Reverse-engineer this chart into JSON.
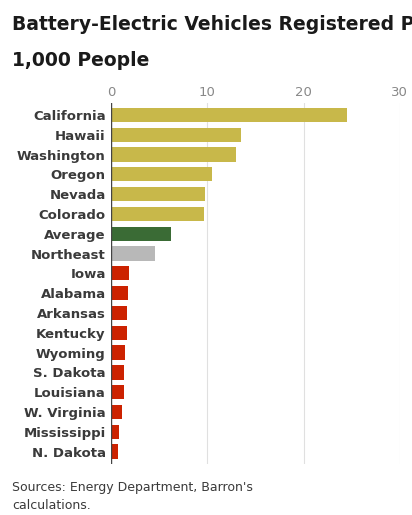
{
  "title_line1": "Battery-Electric Vehicles Registered Per",
  "title_line2": "1,000 People",
  "categories": [
    "California",
    "Hawaii",
    "Washington",
    "Oregon",
    "Nevada",
    "Colorado",
    "Average",
    "Northeast",
    "Iowa",
    "Alabama",
    "Arkansas",
    "Kentucky",
    "Wyoming",
    "S. Dakota",
    "Louisiana",
    "W. Virginia",
    "Mississippi",
    "N. Dakota"
  ],
  "values": [
    24.5,
    13.5,
    13.0,
    10.5,
    9.8,
    9.7,
    6.2,
    4.5,
    1.8,
    1.7,
    1.6,
    1.6,
    1.4,
    1.3,
    1.3,
    1.1,
    0.8,
    0.75
  ],
  "colors": [
    "#c8b84a",
    "#c8b84a",
    "#c8b84a",
    "#c8b84a",
    "#c8b84a",
    "#c8b84a",
    "#3a6b35",
    "#b8b8b8",
    "#cc2200",
    "#cc2200",
    "#cc2200",
    "#cc2200",
    "#cc2200",
    "#cc2200",
    "#cc2200",
    "#cc2200",
    "#cc2200",
    "#cc2200"
  ],
  "xlim": [
    0,
    30
  ],
  "xticks": [
    0,
    10,
    20,
    30
  ],
  "background_color": "#ffffff",
  "footer": "Sources: Energy Department, Barron's\ncalculations.",
  "title_fontsize": 13.5,
  "label_fontsize": 9.5,
  "tick_fontsize": 9.5,
  "footer_fontsize": 9,
  "bar_height": 0.72,
  "label_color": "#3a3a3a",
  "tick_color": "#888888",
  "grid_color": "#e0e0e0",
  "vline_color": "#444444"
}
